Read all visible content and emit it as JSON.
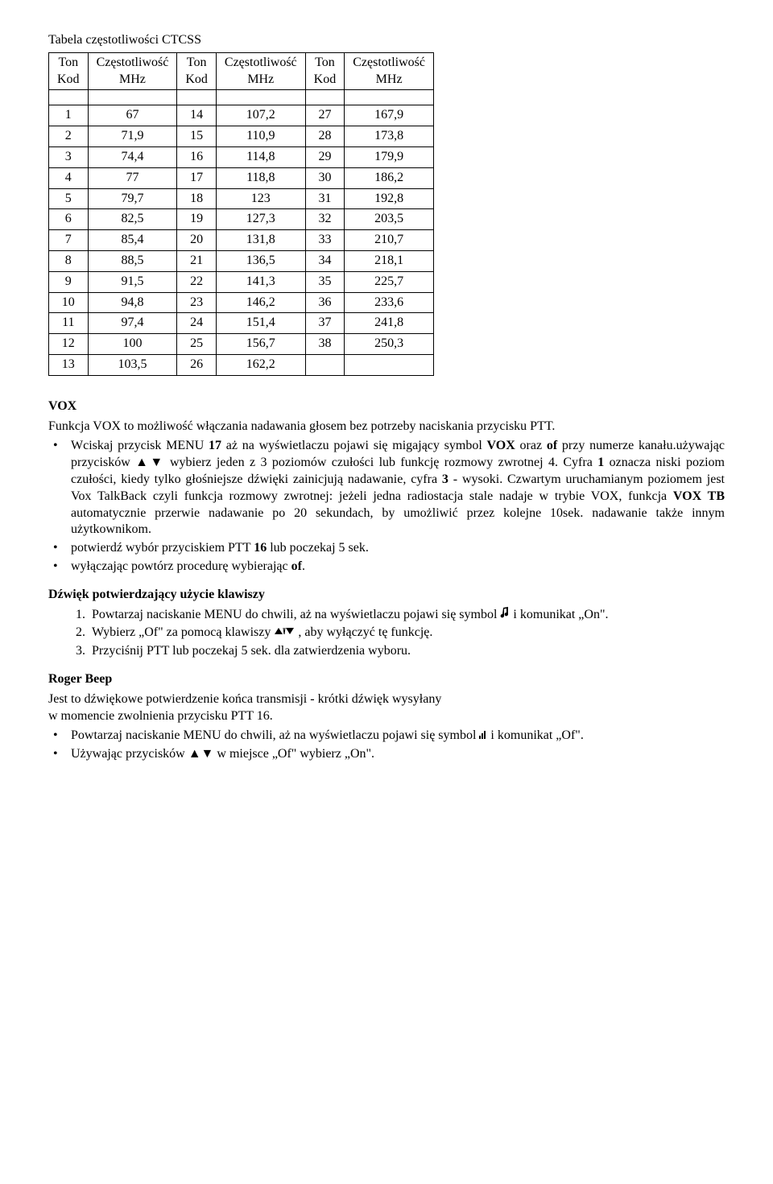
{
  "table_title": "Tabela częstotliwości CTCSS",
  "headers": {
    "ton_kod": "Ton Kod",
    "czest": "Częstotliwość MHz"
  },
  "rows": [
    [
      "1",
      "67",
      "14",
      "107,2",
      "27",
      "167,9"
    ],
    [
      "2",
      "71,9",
      "15",
      "110,9",
      "28",
      "173,8"
    ],
    [
      "3",
      "74,4",
      "16",
      "114,8",
      "29",
      "179,9"
    ],
    [
      "4",
      "77",
      "17",
      "118,8",
      "30",
      "186,2"
    ],
    [
      "5",
      "79,7",
      "18",
      "123",
      "31",
      "192,8"
    ],
    [
      "6",
      "82,5",
      "19",
      "127,3",
      "32",
      "203,5"
    ],
    [
      "7",
      "85,4",
      "20",
      "131,8",
      "33",
      "210,7"
    ],
    [
      "8",
      "88,5",
      "21",
      "136,5",
      "34",
      "218,1"
    ],
    [
      "9",
      "91,5",
      "22",
      "141,3",
      "35",
      "225,7"
    ],
    [
      "10",
      "94,8",
      "23",
      "146,2",
      "36",
      "233,6"
    ],
    [
      "11",
      "97,4",
      "24",
      "151,4",
      "37",
      "241,8"
    ],
    [
      "12",
      "100",
      "25",
      "156,7",
      "38",
      "250,3"
    ],
    [
      "13",
      "103,5",
      "26",
      "162,2",
      "",
      ""
    ]
  ],
  "vox": {
    "title": "VOX",
    "intro": "Funkcja VOX to  możliwość włączania nadawania głosem bez potrzeby naciskania przycisku PTT.",
    "b1_a": "Wciskaj przycisk MENU ",
    "b1_b": "17",
    "b1_c": " aż na wyświetlaczu pojawi się migający symbol ",
    "b1_d": "VOX",
    "b1_e": " oraz ",
    "b1_f": "of",
    "b1_g": " przy numerze kanału.używając przycisków ▲▼ wybierz jeden z 3 poziomów czułości lub funkcję rozmowy zwrotnej 4. Cyfra ",
    "b1_h": "1",
    "b1_i": " oznacza niski poziom czułości, kiedy tylko głośniejsze dźwięki zainicjują nadawanie, cyfra ",
    "b1_j": "3",
    "b1_k": " - wysoki. Czwartym uruchamianym poziomem jest Vox TalkBack czyli funkcja rozmowy zwrotnej: jeżeli jedna radiostacja stale nadaje w trybie VOX, funkcja ",
    "b1_l": "VOX TB",
    "b1_m": " automatycznie przerwie nadawanie po 20 sekundach, by umożliwić przez kolejne 10sek. nadawanie także innym użytkownikom.",
    "b2_a": "potwierdź wybór przyciskiem PTT ",
    "b2_b": "16",
    "b2_c": " lub poczekaj 5 sek.",
    "b3_a": "wyłączając powtórz procedurę wybierając ",
    "b3_b": "of",
    "b3_c": "."
  },
  "keys": {
    "title": "Dźwięk potwierdzający użycie klawiszy",
    "n1_a": "Powtarzaj naciskanie MENU do chwili, aż na wyświetlaczu pojawi się symbol ",
    "n1_b": " i komunikat „On\".",
    "n2_a": "Wybierz „Of\" za pomocą klawiszy  ",
    "n2_b": " , aby wyłączyć tę funkcję.",
    "n3": "Przyciśnij PTT lub poczekaj 5 sek. dla zatwierdzenia wyboru."
  },
  "roger": {
    "title": "Roger Beep",
    "intro1": "Jest to dźwiękowe potwierdzenie końca transmisji - krótki dźwięk wysyłany",
    "intro2": "w momencie zwolnienia przycisku PTT 16.",
    "b1_a": "Powtarzaj naciskanie MENU do chwili, aż na wyświetlaczu pojawi się symbol ",
    "b1_b": " i komunikat „Of\".",
    "b2": "Używając przycisków ▲▼ w miejsce „Of\" wybierz „On\"."
  }
}
